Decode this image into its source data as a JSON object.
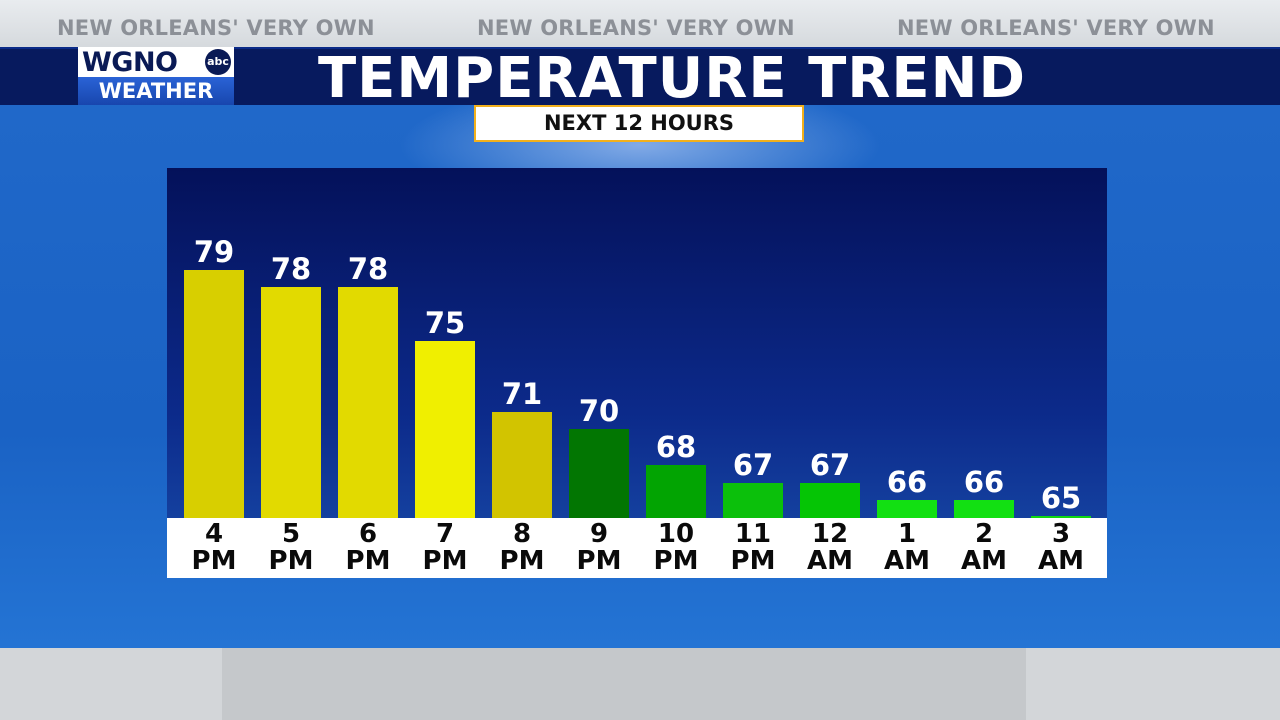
{
  "banner": {
    "ticker": [
      "NEW ORLEANS' VERY OWN",
      "NEW ORLEANS' VERY OWN",
      "NEW ORLEANS' VERY OWN"
    ]
  },
  "logo": {
    "wordmark": "WGNO",
    "network": "abc",
    "tagline": "WEATHER"
  },
  "header": {
    "title": "TEMPERATURE TREND",
    "subtitle": "NEXT 12 HOURS"
  },
  "chart_data": {
    "type": "bar",
    "title": "TEMPERATURE TREND",
    "subtitle": "NEXT 12 HOURS",
    "categories": [
      [
        "4",
        "PM"
      ],
      [
        "5",
        "PM"
      ],
      [
        "6",
        "PM"
      ],
      [
        "7",
        "PM"
      ],
      [
        "8",
        "PM"
      ],
      [
        "9",
        "PM"
      ],
      [
        "10",
        "PM"
      ],
      [
        "11",
        "PM"
      ],
      [
        "12",
        "AM"
      ],
      [
        "1",
        "AM"
      ],
      [
        "2",
        "AM"
      ],
      [
        "3",
        "AM"
      ]
    ],
    "values": [
      79,
      78,
      78,
      75,
      71,
      70,
      68,
      67,
      67,
      66,
      66,
      65
    ],
    "colors": [
      "#d8cf00",
      "#e2da00",
      "#e2da00",
      "#f0ef00",
      "#d2c400",
      "#027602",
      "#02a402",
      "#0bc00b",
      "#05c505",
      "#12e012",
      "#12e012",
      "#10d810"
    ],
    "ylim": [
      65,
      80
    ],
    "grid": false,
    "legend": "none",
    "data_labels": true
  }
}
